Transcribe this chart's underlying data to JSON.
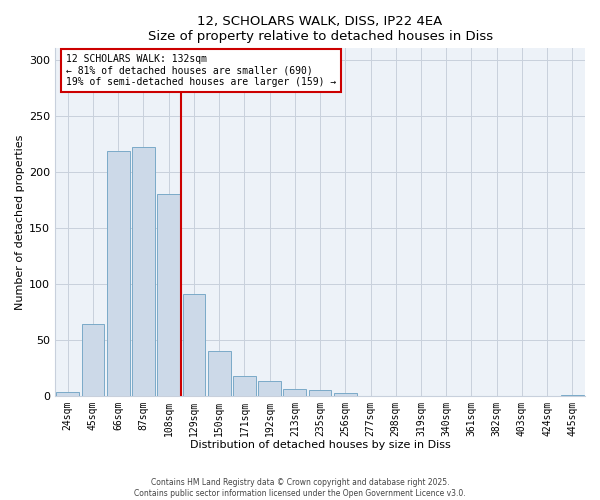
{
  "title1": "12, SCHOLARS WALK, DISS, IP22 4EA",
  "title2": "Size of property relative to detached houses in Diss",
  "xlabel": "Distribution of detached houses by size in Diss",
  "ylabel": "Number of detached properties",
  "bar_labels": [
    "24sqm",
    "45sqm",
    "66sqm",
    "87sqm",
    "108sqm",
    "129sqm",
    "150sqm",
    "171sqm",
    "192sqm",
    "213sqm",
    "235sqm",
    "256sqm",
    "277sqm",
    "298sqm",
    "319sqm",
    "340sqm",
    "361sqm",
    "382sqm",
    "403sqm",
    "424sqm",
    "445sqm"
  ],
  "bar_values": [
    3,
    64,
    218,
    222,
    180,
    91,
    40,
    18,
    13,
    6,
    5,
    2,
    0,
    0,
    0,
    0,
    0,
    0,
    0,
    0,
    1
  ],
  "bar_color": "#ccd9e8",
  "bar_edge_color": "#7aaac8",
  "vline_color": "#cc0000",
  "annotation_line1": "12 SCHOLARS WALK: 132sqm",
  "annotation_line2": "← 81% of detached houses are smaller (690)",
  "annotation_line3": "19% of semi-detached houses are larger (159) →",
  "annotation_box_color": "#ffffff",
  "annotation_box_edge": "#cc0000",
  "ylim": [
    0,
    310
  ],
  "yticks": [
    0,
    50,
    100,
    150,
    200,
    250,
    300
  ],
  "footer1": "Contains HM Land Registry data © Crown copyright and database right 2025.",
  "footer2": "Contains public sector information licensed under the Open Government Licence v3.0.",
  "bg_color": "#ffffff",
  "plot_bg_color": "#edf2f8",
  "grid_color": "#c8d0dc"
}
